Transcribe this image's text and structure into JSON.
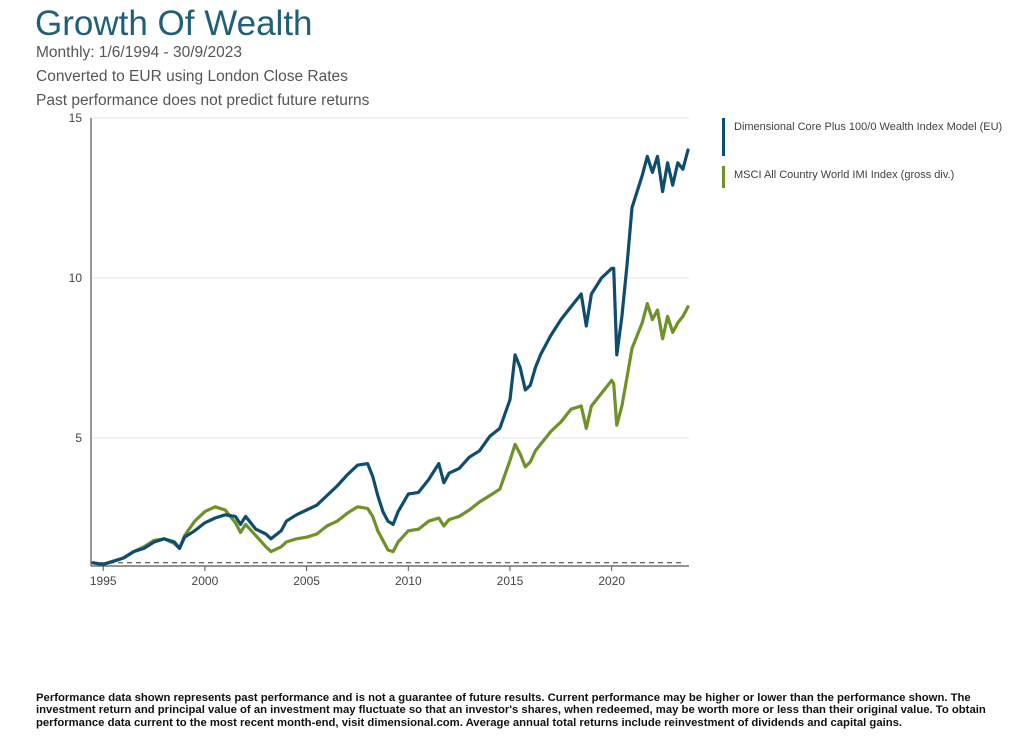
{
  "header": {
    "title": "Growth Of Wealth",
    "period": "Monthly: 1/6/1994 - 30/9/2023",
    "conversion": "Converted to EUR using London Close Rates",
    "disclaimer": "Past performance does not predict future returns"
  },
  "colors": {
    "title": "#1f5f78",
    "dimensional": "#0e4d6e",
    "msci": "#6e9128",
    "grid": "#e3e3e3",
    "axis": "#555555"
  },
  "legend": [
    {
      "label": "Dimensional Core Plus 100/0 Wealth Index Model (EU)",
      "color": "#0e4d6e"
    },
    {
      "label": "MSCI All Country World IMI Index (gross div.)",
      "color": "#6e9128"
    }
  ],
  "chart_data": {
    "type": "line",
    "xlim": [
      1994.4,
      2023.8
    ],
    "ylim": [
      1,
      15
    ],
    "y_ticks": [
      5,
      10,
      15
    ],
    "x_ticks": [
      1995,
      2000,
      2005,
      2010,
      2015,
      2020
    ],
    "x_tick_labels": [
      "1995",
      "2000",
      "2005",
      "2010",
      "2015",
      "2020"
    ],
    "y_tick_labels": [
      "5",
      "10",
      "15"
    ],
    "reference_line": {
      "value": 1.1,
      "style": "dashed"
    },
    "series": [
      {
        "name": "Dimensional Core Plus 100/0 Wealth Index Model (EU)",
        "x": [
          1994.5,
          1995.0,
          1995.5,
          1996.0,
          1996.5,
          1997.0,
          1997.5,
          1998.0,
          1998.5,
          1998.75,
          1999.0,
          1999.5,
          2000.0,
          2000.5,
          2001.0,
          2001.5,
          2001.75,
          2002.0,
          2002.5,
          2003.0,
          2003.25,
          2003.75,
          2004.0,
          2004.5,
          2005.0,
          2005.5,
          2006.0,
          2006.5,
          2007.0,
          2007.5,
          2008.0,
          2008.25,
          2008.5,
          2008.75,
          2009.0,
          2009.25,
          2009.5,
          2010.0,
          2010.5,
          2011.0,
          2011.5,
          2011.75,
          2012.0,
          2012.5,
          2013.0,
          2013.5,
          2014.0,
          2014.5,
          2015.0,
          2015.25,
          2015.5,
          2015.75,
          2016.0,
          2016.25,
          2016.5,
          2017.0,
          2017.5,
          2018.0,
          2018.5,
          2018.75,
          2019.0,
          2019.5,
          2020.0,
          2020.1,
          2020.25,
          2020.5,
          2020.75,
          2021.0,
          2021.5,
          2021.75,
          2022.0,
          2022.25,
          2022.5,
          2022.75,
          2023.0,
          2023.25,
          2023.5,
          2023.75
        ],
        "values": [
          1.1,
          1.05,
          1.15,
          1.25,
          1.45,
          1.55,
          1.75,
          1.85,
          1.75,
          1.55,
          1.9,
          2.1,
          2.35,
          2.5,
          2.6,
          2.55,
          2.3,
          2.55,
          2.15,
          2.0,
          1.85,
          2.1,
          2.4,
          2.6,
          2.75,
          2.9,
          3.2,
          3.5,
          3.85,
          4.15,
          4.2,
          3.8,
          3.2,
          2.7,
          2.4,
          2.3,
          2.7,
          3.25,
          3.3,
          3.7,
          4.2,
          3.6,
          3.9,
          4.05,
          4.4,
          4.6,
          5.05,
          5.3,
          6.2,
          7.6,
          7.2,
          6.5,
          6.65,
          7.2,
          7.6,
          8.2,
          8.7,
          9.1,
          9.5,
          8.5,
          9.5,
          10.0,
          10.3,
          10.3,
          7.6,
          8.8,
          10.4,
          12.2,
          13.2,
          13.8,
          13.3,
          13.8,
          12.7,
          13.6,
          12.9,
          13.6,
          13.4,
          14.0
        ]
      },
      {
        "name": "MSCI All Country World IMI Index (gross div.)",
        "x": [
          1994.5,
          1995.0,
          1995.5,
          1996.0,
          1996.5,
          1997.0,
          1997.5,
          1998.0,
          1998.5,
          1998.75,
          1999.0,
          1999.5,
          2000.0,
          2000.5,
          2001.0,
          2001.5,
          2001.75,
          2002.0,
          2002.5,
          2003.0,
          2003.25,
          2003.75,
          2004.0,
          2004.5,
          2005.0,
          2005.5,
          2006.0,
          2006.5,
          2007.0,
          2007.5,
          2008.0,
          2008.25,
          2008.5,
          2008.75,
          2009.0,
          2009.25,
          2009.5,
          2010.0,
          2010.5,
          2011.0,
          2011.5,
          2011.75,
          2012.0,
          2012.5,
          2013.0,
          2013.5,
          2014.0,
          2014.5,
          2015.0,
          2015.25,
          2015.5,
          2015.75,
          2016.0,
          2016.25,
          2016.5,
          2017.0,
          2017.5,
          2018.0,
          2018.5,
          2018.75,
          2019.0,
          2019.5,
          2020.0,
          2020.1,
          2020.25,
          2020.5,
          2020.75,
          2021.0,
          2021.5,
          2021.75,
          2022.0,
          2022.25,
          2022.5,
          2022.75,
          2023.0,
          2023.25,
          2023.5,
          2023.75
        ],
        "values": [
          1.1,
          1.05,
          1.15,
          1.25,
          1.45,
          1.6,
          1.8,
          1.85,
          1.7,
          1.55,
          1.95,
          2.4,
          2.7,
          2.85,
          2.75,
          2.35,
          2.05,
          2.3,
          1.95,
          1.6,
          1.45,
          1.6,
          1.75,
          1.85,
          1.9,
          2.0,
          2.25,
          2.4,
          2.65,
          2.85,
          2.8,
          2.55,
          2.1,
          1.8,
          1.5,
          1.45,
          1.75,
          2.1,
          2.15,
          2.4,
          2.5,
          2.25,
          2.45,
          2.55,
          2.75,
          3.0,
          3.2,
          3.4,
          4.3,
          4.8,
          4.5,
          4.1,
          4.25,
          4.6,
          4.8,
          5.2,
          5.5,
          5.9,
          6.0,
          5.3,
          6.0,
          6.4,
          6.8,
          6.7,
          5.4,
          6.0,
          6.9,
          7.8,
          8.6,
          9.2,
          8.7,
          9.0,
          8.1,
          8.8,
          8.3,
          8.6,
          8.8,
          9.1
        ]
      }
    ]
  },
  "footnote": "Performance data shown represents past performance and is not a guarantee of future results. Current performance may be higher or lower than the performance shown. The investment return and principal value of an investment may fluctuate so that an investor's shares, when redeemed, may be worth more or less than their original value. To obtain performance data current to the most recent month-end, visit dimensional.com. Average annual total returns include reinvestment of dividends and capital gains."
}
